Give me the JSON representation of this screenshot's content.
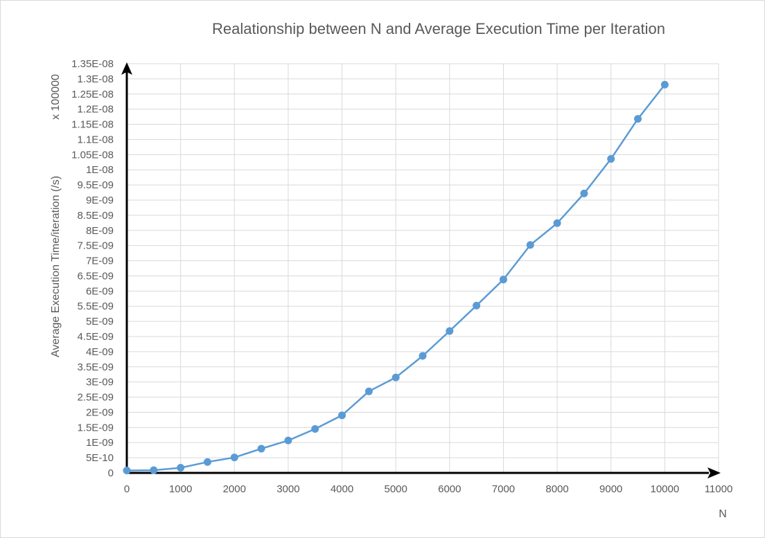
{
  "chart_data": {
    "type": "line",
    "title": "Realationship between N and Average Execution Time per Iteration",
    "xlabel": "N",
    "ylabel": "Average Execution Time/iteration  (/s)",
    "ylabel_multiplier": "x 100000",
    "xlim": [
      0,
      11000
    ],
    "ylim": [
      0,
      1.35e-08
    ],
    "x_ticks": [
      "0",
      "1000",
      "2000",
      "3000",
      "4000",
      "5000",
      "6000",
      "7000",
      "8000",
      "9000",
      "10000",
      "11000"
    ],
    "y_ticks": [
      "0",
      "5E-10",
      "1E-09",
      "1.5E-09",
      "2E-09",
      "2.5E-09",
      "3E-09",
      "3.5E-09",
      "4E-09",
      "4.5E-09",
      "5E-09",
      "5.5E-09",
      "6E-09",
      "6.5E-09",
      "7E-09",
      "7.5E-09",
      "8E-09",
      "8.5E-09",
      "9E-09",
      "9.5E-09",
      "1E-08",
      "1.05E-08",
      "1.1E-08",
      "1.15E-08",
      "1.2E-08",
      "1.25E-08",
      "1.3E-08",
      "1.35E-08"
    ],
    "grid": true,
    "series": [
      {
        "color": "#5b9bd5",
        "x": [
          0,
          500,
          1000,
          1500,
          2000,
          2500,
          3000,
          3500,
          4000,
          4500,
          5000,
          5500,
          6000,
          6500,
          7000,
          7500,
          8000,
          8500,
          9000,
          9500,
          10000
        ],
        "y": [
          8e-11,
          9e-11,
          1.7e-10,
          3.6e-10,
          5.1e-10,
          8e-10,
          1.07e-09,
          1.45e-09,
          1.9e-09,
          2.69e-09,
          3.15e-09,
          3.86e-09,
          4.68e-09,
          5.52e-09,
          6.38e-09,
          7.52e-09,
          8.24e-09,
          9.22e-09,
          1.036e-08,
          1.168e-08,
          1.281e-08
        ]
      }
    ]
  }
}
